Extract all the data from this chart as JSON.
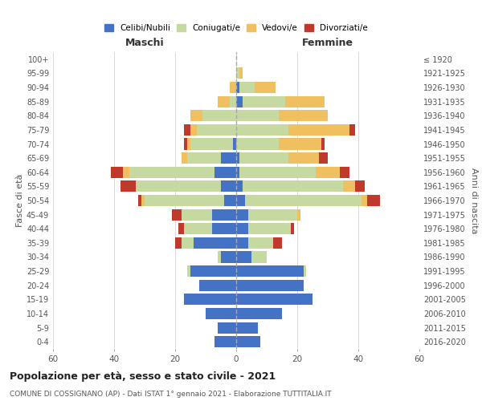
{
  "age_groups": [
    "0-4",
    "5-9",
    "10-14",
    "15-19",
    "20-24",
    "25-29",
    "30-34",
    "35-39",
    "40-44",
    "45-49",
    "50-54",
    "55-59",
    "60-64",
    "65-69",
    "70-74",
    "75-79",
    "80-84",
    "85-89",
    "90-94",
    "95-99",
    "100+"
  ],
  "birth_years": [
    "2016-2020",
    "2011-2015",
    "2006-2010",
    "2001-2005",
    "1996-2000",
    "1991-1995",
    "1986-1990",
    "1981-1985",
    "1976-1980",
    "1971-1975",
    "1966-1970",
    "1961-1965",
    "1956-1960",
    "1951-1955",
    "1946-1950",
    "1941-1945",
    "1936-1940",
    "1931-1935",
    "1926-1930",
    "1921-1925",
    "≤ 1920"
  ],
  "colors": {
    "celibi": "#4472C4",
    "coniugati": "#C5D9A0",
    "vedovi": "#F0C060",
    "divorziati": "#C0392B"
  },
  "male": {
    "celibi": [
      7,
      6,
      10,
      17,
      12,
      15,
      5,
      14,
      8,
      8,
      4,
      5,
      7,
      5,
      1,
      0,
      0,
      0,
      0,
      0,
      0
    ],
    "coniugati": [
      0,
      0,
      0,
      0,
      0,
      1,
      1,
      4,
      9,
      10,
      26,
      28,
      28,
      11,
      14,
      13,
      11,
      2,
      0,
      0,
      0
    ],
    "vedovi": [
      0,
      0,
      0,
      0,
      0,
      0,
      0,
      0,
      0,
      0,
      1,
      0,
      2,
      2,
      1,
      2,
      4,
      4,
      2,
      0,
      0
    ],
    "divorziati": [
      0,
      0,
      0,
      0,
      0,
      0,
      0,
      2,
      2,
      3,
      1,
      5,
      4,
      0,
      1,
      2,
      0,
      0,
      0,
      0,
      0
    ]
  },
  "female": {
    "nubili": [
      8,
      7,
      15,
      25,
      22,
      22,
      5,
      4,
      4,
      4,
      3,
      2,
      1,
      1,
      0,
      0,
      0,
      2,
      1,
      0,
      0
    ],
    "coniugate": [
      0,
      0,
      0,
      0,
      0,
      1,
      5,
      8,
      14,
      16,
      38,
      33,
      25,
      16,
      14,
      17,
      14,
      14,
      5,
      1,
      0
    ],
    "vedove": [
      0,
      0,
      0,
      0,
      0,
      0,
      0,
      0,
      0,
      1,
      2,
      4,
      8,
      10,
      14,
      20,
      16,
      13,
      7,
      1,
      0
    ],
    "divorziate": [
      0,
      0,
      0,
      0,
      0,
      0,
      0,
      3,
      1,
      0,
      4,
      3,
      3,
      3,
      1,
      2,
      0,
      0,
      0,
      0,
      0
    ]
  },
  "title": "Popolazione per età, sesso e stato civile - 2021",
  "subtitle": "COMUNE DI COSSIGNANO (AP) - Dati ISTAT 1° gennaio 2021 - Elaborazione TUTTITALIA.IT",
  "xlabel_left": "Maschi",
  "xlabel_right": "Femmine",
  "ylabel_left": "Fasce di età",
  "ylabel_right": "Anni di nascita",
  "xlim": 60,
  "legend_labels": [
    "Celibi/Nubili",
    "Coniugati/e",
    "Vedovi/e",
    "Divorziati/e"
  ],
  "background_color": "#FFFFFF",
  "grid_color": "#CCCCCC"
}
